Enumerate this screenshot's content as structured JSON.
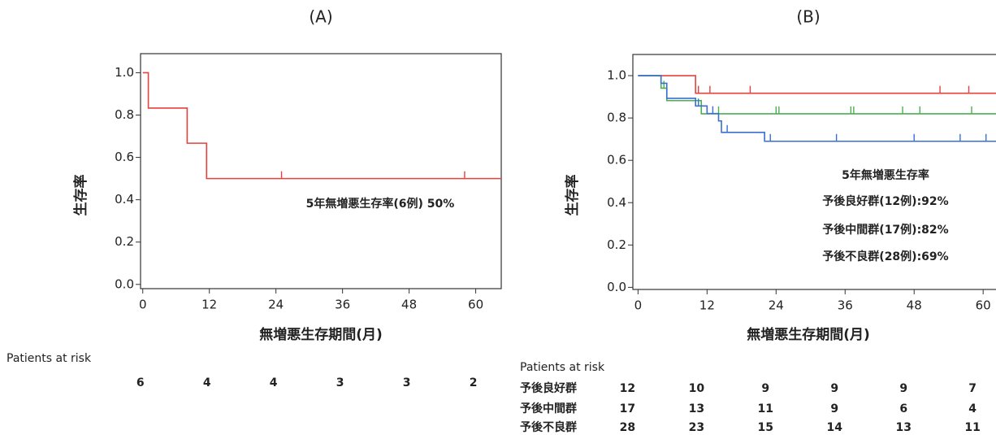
{
  "chart_data": [
    {
      "type": "step",
      "title": "(A)",
      "x_label": "無増悪生存期間(月)",
      "y_label": "生存率",
      "annotations": [
        "5年無増悪生存率(6例) 50%"
      ],
      "xlim": [
        -0.4,
        64.6
      ],
      "ylim": [
        -0.02,
        1.09
      ],
      "xticks": [
        0,
        12,
        24,
        36,
        48,
        60
      ],
      "yticks": [
        {
          "value": 0,
          "label": "0.0"
        },
        0.2,
        0.4,
        0.6,
        0.8,
        {
          "value": 1,
          "label": "1.0"
        }
      ],
      "series": [
        {
          "color": "#e8413c",
          "x": [
            0,
            1,
            8,
            11.5,
            64.6
          ],
          "values": [
            1,
            0.833,
            0.667,
            0.5,
            0.5
          ],
          "censored": {
            "x": [
              25,
              58
            ],
            "values": [
              0.5,
              0.5
            ]
          }
        }
      ],
      "risk_table": {
        "title": "Patients at risk",
        "rows": [
          {
            "values": [
              6,
              4,
              4,
              3,
              3,
              2
            ]
          }
        ]
      }
    },
    {
      "type": "step",
      "title": "(B)",
      "x_label": "無増悪生存期間(月)",
      "y_label": "生存率",
      "annotations": [
        "5年無増悪生存率",
        "予後良好群(12例):92%",
        "予後中間群(17例):82%",
        "予後不良群(28例):69%"
      ],
      "xlim": [
        -0.9,
        62.8
      ],
      "ylim": [
        -0.01,
        1.1
      ],
      "xticks": [
        0,
        12,
        24,
        36,
        48,
        60
      ],
      "yticks": [
        {
          "value": 0,
          "label": "0.0"
        },
        0.2,
        0.4,
        0.6,
        0.8,
        {
          "value": 1,
          "label": "1.0"
        }
      ],
      "series": [
        {
          "name": "予後良好群",
          "color": "#e8413c",
          "x": [
            0,
            10,
            62.8
          ],
          "values": [
            1,
            0.917,
            0.917
          ],
          "censored": {
            "x": [
              10.5,
              12.5,
              19.5,
              52.5,
              57.5
            ],
            "values": [
              0.917,
              0.917,
              0.917,
              0.917,
              0.917
            ]
          }
        },
        {
          "name": "予後中間群",
          "color": "#4caf50",
          "x": [
            0,
            4,
            5,
            11,
            62.8
          ],
          "values": [
            1,
            0.941,
            0.882,
            0.82,
            0.82
          ],
          "censored": {
            "x": [
              4.5,
              11,
              14,
              24,
              24.5,
              37,
              37.5,
              46,
              49,
              58
            ],
            "values": [
              0.941,
              0.82,
              0.82,
              0.82,
              0.82,
              0.82,
              0.82,
              0.82,
              0.82,
              0.82
            ]
          }
        },
        {
          "name": "予後不良群",
          "color": "#3a6fd1",
          "x": [
            0,
            4,
            5,
            10,
            12,
            14,
            14.5,
            22,
            62.8
          ],
          "values": [
            1,
            0.964,
            0.893,
            0.857,
            0.821,
            0.786,
            0.732,
            0.69,
            0.69
          ],
          "censored": {
            "x": [
              10.5,
              13,
              15.5,
              23,
              34.5,
              48,
              56,
              60.5
            ],
            "values": [
              0.857,
              0.821,
              0.732,
              0.69,
              0.69,
              0.69,
              0.69,
              0.69
            ]
          }
        }
      ],
      "risk_table": {
        "title": "Patients at risk",
        "rows": [
          {
            "values": [
              12,
              10,
              9,
              9,
              9,
              7
            ]
          },
          {
            "values": [
              17,
              13,
              11,
              9,
              6,
              4
            ]
          },
          {
            "values": [
              28,
              23,
              15,
              14,
              13,
              11
            ]
          }
        ]
      }
    }
  ]
}
